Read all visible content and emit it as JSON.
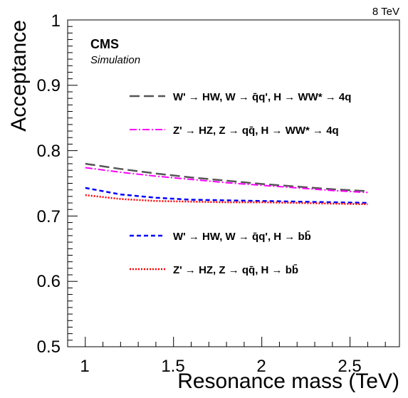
{
  "chart_data": {
    "type": "line",
    "energy_label": "8 TeV",
    "experiment": "CMS",
    "experiment_sublabel": "Simulation",
    "xlabel": "Resonance mass (TeV)",
    "ylabel": "Acceptance",
    "xlim": [
      0.9,
      2.78
    ],
    "ylim": [
      0.5,
      1.0
    ],
    "xticks": [
      "1",
      "1.5",
      "2",
      "2.5"
    ],
    "yticks": [
      "0.5",
      "0.6",
      "0.7",
      "0.8",
      "0.9",
      "1"
    ],
    "grid": false,
    "legend_position": "inside",
    "series": [
      {
        "name": "W' → HW, W → q̄q', H → WW* → 4q",
        "color": "#555555",
        "style": "long-dash",
        "x": [
          1.0,
          1.2,
          1.4,
          1.6,
          1.8,
          2.0,
          2.2,
          2.4,
          2.6
        ],
        "y": [
          0.78,
          0.772,
          0.765,
          0.759,
          0.754,
          0.749,
          0.745,
          0.741,
          0.738
        ]
      },
      {
        "name": "Z' → HZ, Z → qq̄, H → WW* → 4q",
        "color": "#ff00ff",
        "style": "dash-dot",
        "x": [
          1.0,
          1.2,
          1.4,
          1.6,
          1.8,
          2.0,
          2.2,
          2.4,
          2.6
        ],
        "y": [
          0.774,
          0.767,
          0.761,
          0.756,
          0.751,
          0.747,
          0.743,
          0.739,
          0.736
        ]
      },
      {
        "name": "W' → HW, W → q̄q', H → bb̄",
        "color": "#0000ff",
        "style": "dash",
        "x": [
          1.0,
          1.2,
          1.4,
          1.6,
          1.8,
          2.0,
          2.2,
          2.4,
          2.6
        ],
        "y": [
          0.743,
          0.733,
          0.728,
          0.725,
          0.724,
          0.723,
          0.722,
          0.721,
          0.72
        ]
      },
      {
        "name": "Z' → HZ, Z → qq̄, H → bb̄",
        "color": "#ff0000",
        "style": "dot",
        "x": [
          1.0,
          1.2,
          1.4,
          1.6,
          1.8,
          2.0,
          2.2,
          2.4,
          2.6
        ],
        "y": [
          0.732,
          0.726,
          0.723,
          0.722,
          0.721,
          0.721,
          0.72,
          0.719,
          0.718
        ]
      }
    ]
  }
}
